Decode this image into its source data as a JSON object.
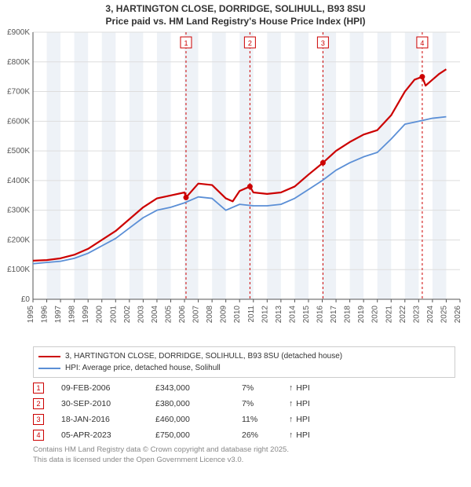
{
  "title_line1": "3, HARTINGTON CLOSE, DORRIDGE, SOLIHULL, B93 8SU",
  "title_line2": "Price paid vs. HM Land Registry's House Price Index (HPI)",
  "chart": {
    "type": "line",
    "plot_background": "#ffffff",
    "band_color": "#eef2f7",
    "grid_color": "#dddddd",
    "axis_text_color": "#555555",
    "x": {
      "min": 1995,
      "max": 2026,
      "ticks": [
        1995,
        1996,
        1997,
        1998,
        1999,
        2000,
        2001,
        2002,
        2003,
        2004,
        2005,
        2006,
        2007,
        2008,
        2009,
        2010,
        2011,
        2012,
        2013,
        2014,
        2015,
        2016,
        2017,
        2018,
        2019,
        2020,
        2021,
        2022,
        2023,
        2024,
        2025,
        2026
      ]
    },
    "y": {
      "min": 0,
      "max": 900000,
      "ticks": [
        0,
        100000,
        200000,
        300000,
        400000,
        500000,
        600000,
        700000,
        800000,
        900000
      ],
      "labels": [
        "£0",
        "£100K",
        "£200K",
        "£300K",
        "£400K",
        "£500K",
        "£600K",
        "£700K",
        "£800K",
        "£900K"
      ]
    },
    "series": [
      {
        "name": "price_paid",
        "color": "#cc0000",
        "width": 2.2,
        "points": [
          [
            1995,
            130000
          ],
          [
            1996,
            132000
          ],
          [
            1997,
            138000
          ],
          [
            1998,
            150000
          ],
          [
            1999,
            170000
          ],
          [
            2000,
            200000
          ],
          [
            2001,
            230000
          ],
          [
            2002,
            270000
          ],
          [
            2003,
            310000
          ],
          [
            2004,
            340000
          ],
          [
            2005,
            350000
          ],
          [
            2006,
            360000
          ],
          [
            2006.11,
            343000
          ],
          [
            2007,
            390000
          ],
          [
            2008,
            385000
          ],
          [
            2009,
            340000
          ],
          [
            2009.5,
            330000
          ],
          [
            2010,
            365000
          ],
          [
            2010.75,
            380000
          ],
          [
            2011,
            360000
          ],
          [
            2012,
            355000
          ],
          [
            2013,
            360000
          ],
          [
            2014,
            380000
          ],
          [
            2015,
            420000
          ],
          [
            2016.05,
            460000
          ],
          [
            2017,
            500000
          ],
          [
            2018,
            530000
          ],
          [
            2019,
            555000
          ],
          [
            2020,
            570000
          ],
          [
            2021,
            620000
          ],
          [
            2022,
            700000
          ],
          [
            2022.7,
            740000
          ],
          [
            2023.26,
            750000
          ],
          [
            2023.5,
            720000
          ],
          [
            2024,
            740000
          ],
          [
            2024.5,
            760000
          ],
          [
            2025,
            775000
          ]
        ]
      },
      {
        "name": "hpi",
        "color": "#5b8fd6",
        "width": 1.8,
        "points": [
          [
            1995,
            120000
          ],
          [
            1996,
            124000
          ],
          [
            1997,
            128000
          ],
          [
            1998,
            138000
          ],
          [
            1999,
            155000
          ],
          [
            2000,
            180000
          ],
          [
            2001,
            205000
          ],
          [
            2002,
            240000
          ],
          [
            2003,
            275000
          ],
          [
            2004,
            300000
          ],
          [
            2005,
            310000
          ],
          [
            2006,
            325000
          ],
          [
            2007,
            345000
          ],
          [
            2008,
            340000
          ],
          [
            2009,
            300000
          ],
          [
            2010,
            320000
          ],
          [
            2011,
            315000
          ],
          [
            2012,
            315000
          ],
          [
            2013,
            320000
          ],
          [
            2014,
            340000
          ],
          [
            2015,
            370000
          ],
          [
            2016,
            400000
          ],
          [
            2017,
            435000
          ],
          [
            2018,
            460000
          ],
          [
            2019,
            480000
          ],
          [
            2020,
            495000
          ],
          [
            2021,
            540000
          ],
          [
            2022,
            590000
          ],
          [
            2023,
            600000
          ],
          [
            2024,
            610000
          ],
          [
            2025,
            615000
          ]
        ]
      }
    ],
    "sale_markers": [
      {
        "n": "1",
        "x": 2006.11,
        "y": 343000
      },
      {
        "n": "2",
        "x": 2010.75,
        "y": 380000
      },
      {
        "n": "3",
        "x": 2016.05,
        "y": 460000
      },
      {
        "n": "4",
        "x": 2023.26,
        "y": 750000
      }
    ],
    "marker_line_color": "#cc0000",
    "marker_box_border": "#cc0000",
    "marker_box_fill": "#ffffff",
    "marker_dot_fill": "#cc0000"
  },
  "legend": {
    "series1_color": "#cc0000",
    "series1_label": "3, HARTINGTON CLOSE, DORRIDGE, SOLIHULL, B93 8SU (detached house)",
    "series2_color": "#5b8fd6",
    "series2_label": "HPI: Average price, detached house, Solihull"
  },
  "events": [
    {
      "n": "1",
      "date": "09-FEB-2006",
      "price": "£343,000",
      "pct": "7%",
      "arrow": "↑",
      "tag": "HPI"
    },
    {
      "n": "2",
      "date": "30-SEP-2010",
      "price": "£380,000",
      "pct": "7%",
      "arrow": "↑",
      "tag": "HPI"
    },
    {
      "n": "3",
      "date": "18-JAN-2016",
      "price": "£460,000",
      "pct": "11%",
      "arrow": "↑",
      "tag": "HPI"
    },
    {
      "n": "4",
      "date": "05-APR-2023",
      "price": "£750,000",
      "pct": "26%",
      "arrow": "↑",
      "tag": "HPI"
    }
  ],
  "event_marker_color": "#cc0000",
  "footer_line1": "Contains HM Land Registry data © Crown copyright and database right 2025.",
  "footer_line2": "This data is licensed under the Open Government Licence v3.0."
}
